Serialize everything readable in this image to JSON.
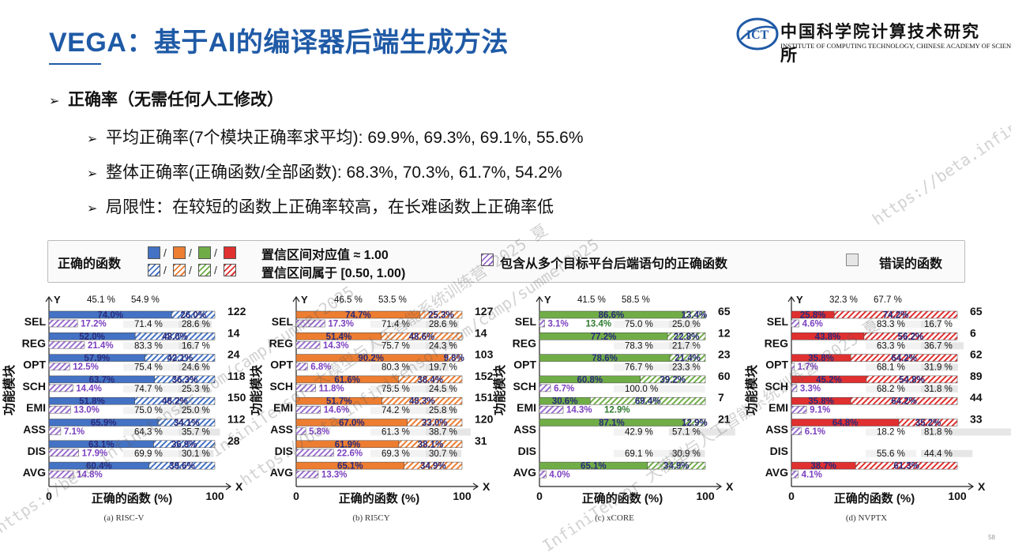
{
  "slide": {
    "title": "VEGA：基于AI的编译器后端生成方法",
    "logo_cn": "中国科学院计算技术研究所",
    "logo_en": "INSTITUTE OF COMPUTING TECHNOLOGY, CHINESE ACADEMY OF SCIENCES",
    "logo_abbr": "ICT",
    "bullets": {
      "main": "正确率（无需任何人工修改）",
      "sub": [
        "平均正确率(7个模块正确率求平均): 69.9%, 69.3%, 69.1%, 55.6%",
        "整体正确率(正确函数/全部函数): 68.3%, 70.3%, 61.7%, 54.2%",
        "局限性：在较短的函数上正确率较高，在长难函数上正确率低"
      ]
    },
    "page_number": "58",
    "watermark": [
      "InfiniTensor 大模型与人工智能系统训练营 2025 夏",
      "https://beta.infinitensor.com/camp/summer2025"
    ]
  },
  "legend": {
    "correct_label": "正确的函数",
    "ci_full": "置信区间对应值 ≈ 1.00",
    "ci_part": "置信区间属于 [0.50, 1.00)",
    "multi": "包含从多个目标平台后端语句的正确函数",
    "wrong": "错误的函数",
    "separator": "/"
  },
  "colors": {
    "RISC-V": "#4472c4",
    "RI5CY": "#ed7d31",
    "xCORE": "#70ad47",
    "NVPTX": "#e03030",
    "multi": "#9b6fcf",
    "wrong": "#e6e6e6"
  },
  "chart_data": [
    {
      "type": "bar",
      "orientation": "horizontal",
      "stacked": true,
      "caption": "(a)  RISC-V",
      "target": "RISC-V",
      "xlabel": "正确的函数 (%)",
      "ylabel": "功能模块",
      "xlim": [
        0,
        100
      ],
      "axis_y_label": "Y",
      "axis_x_label": "X",
      "x_ticks": [
        "0",
        "100"
      ],
      "categories": [
        "SEL",
        "REG",
        "OPT",
        "SCH",
        "EMI",
        "ASS",
        "DIS",
        "AVG"
      ],
      "counts": [
        "122",
        "14",
        "24",
        "118",
        "150",
        "112",
        "28",
        ""
      ],
      "rows": [
        {
          "summary": [
            "45.1 %",
            "54.9 %"
          ],
          "full": 74.0,
          "part": 26.0,
          "multi": 17.2,
          "correct_pct": 71.4,
          "wrong_pct": 28.6
        },
        {
          "summary": null,
          "full": 52.0,
          "part": 48.0,
          "multi": 21.4,
          "correct_pct": 83.3,
          "wrong_pct": 16.7
        },
        {
          "summary": null,
          "full": 57.9,
          "part": 42.1,
          "multi": 12.5,
          "correct_pct": 75.4,
          "wrong_pct": 24.6
        },
        {
          "summary": null,
          "full": 63.7,
          "part": 36.3,
          "multi": 14.4,
          "correct_pct": 74.7,
          "wrong_pct": 25.3
        },
        {
          "summary": null,
          "full": 51.8,
          "part": 48.2,
          "multi": 13.0,
          "correct_pct": 75.0,
          "wrong_pct": 25.0
        },
        {
          "summary": null,
          "full": 65.9,
          "part": 34.1,
          "multi": 7.1,
          "correct_pct": 64.3,
          "wrong_pct": 35.7
        },
        {
          "summary": null,
          "full": 63.1,
          "part": 36.9,
          "multi": 17.9,
          "correct_pct": 69.9,
          "wrong_pct": 30.1
        },
        {
          "summary": null,
          "full": 60.4,
          "part": 39.6,
          "multi": 14.8,
          "correct_pct": null,
          "wrong_pct": null
        }
      ]
    },
    {
      "type": "bar",
      "orientation": "horizontal",
      "stacked": true,
      "caption": "(b)  RI5CY",
      "target": "RI5CY",
      "xlabel": "正确的函数 (%)",
      "ylabel": "功能模块",
      "xlim": [
        0,
        100
      ],
      "axis_y_label": "Y",
      "axis_x_label": "X",
      "x_ticks": [
        "0",
        "100"
      ],
      "categories": [
        "SEL",
        "REG",
        "OPT",
        "SCH",
        "EMI",
        "ASS",
        "DIS",
        "AVG"
      ],
      "counts": [
        "127",
        "14",
        "103",
        "152",
        "151",
        "120",
        "31",
        ""
      ],
      "rows": [
        {
          "summary": [
            "46.5 %",
            "53.5 %"
          ],
          "full": 74.7,
          "part": 25.3,
          "multi": 17.3,
          "correct_pct": 71.4,
          "wrong_pct": 28.6
        },
        {
          "summary": null,
          "full": 51.4,
          "part": 48.6,
          "multi": 14.3,
          "correct_pct": 75.7,
          "wrong_pct": 24.3
        },
        {
          "summary": null,
          "full": 90.2,
          "part": 9.8,
          "multi": 6.8,
          "correct_pct": 80.3,
          "wrong_pct": 19.7
        },
        {
          "summary": null,
          "full": 61.6,
          "part": 38.4,
          "multi": 11.8,
          "correct_pct": 75.5,
          "wrong_pct": 24.5
        },
        {
          "summary": null,
          "full": 51.7,
          "part": 48.3,
          "multi": 14.6,
          "correct_pct": 74.2,
          "wrong_pct": 25.8
        },
        {
          "summary": null,
          "full": 67.0,
          "part": 33.0,
          "multi": 5.8,
          "correct_pct": 61.3,
          "wrong_pct": 38.7
        },
        {
          "summary": null,
          "full": 61.9,
          "part": 38.1,
          "multi": 22.6,
          "correct_pct": 69.3,
          "wrong_pct": 30.7
        },
        {
          "summary": null,
          "full": 65.1,
          "part": 34.9,
          "multi": 13.3,
          "correct_pct": null,
          "wrong_pct": null
        }
      ]
    },
    {
      "type": "bar",
      "orientation": "horizontal",
      "stacked": true,
      "caption": "(c)  xCORE",
      "target": "xCORE",
      "xlabel": "正确的函数 (%)",
      "ylabel": "功能模块",
      "xlim": [
        0,
        100
      ],
      "axis_y_label": "Y",
      "axis_x_label": "X",
      "x_ticks": [
        "0",
        "100"
      ],
      "categories": [
        "SEL",
        "REG",
        "OPT",
        "SCH",
        "EMI",
        "ASS",
        "DIS",
        "AVG"
      ],
      "counts": [
        "65",
        "12",
        "23",
        "60",
        "7",
        "21",
        "",
        ""
      ],
      "rows": [
        {
          "summary": [
            "41.5 %",
            "58.5 %"
          ],
          "full": 86.6,
          "part": 13.4,
          "multi": 3.1,
          "multi2": 13.4,
          "correct_pct": 75.0,
          "wrong_pct": 25.0
        },
        {
          "summary": null,
          "full": 77.2,
          "part": 22.8,
          "multi": null,
          "correct_pct": 78.3,
          "wrong_pct": 21.7
        },
        {
          "summary": null,
          "full": 78.6,
          "part": 21.4,
          "multi": null,
          "correct_pct": 76.7,
          "wrong_pct": 23.3
        },
        {
          "summary": null,
          "full": 60.8,
          "part": 39.2,
          "multi": 6.7,
          "correct_pct": 100.0,
          "wrong_pct": null
        },
        {
          "summary": null,
          "full": 30.6,
          "part": 69.4,
          "multi": 14.3,
          "multi2": 12.9,
          "correct_pct": null,
          "wrong_pct": null
        },
        {
          "summary": null,
          "full": 87.1,
          "part": 12.9,
          "multi": null,
          "correct_pct": 42.9,
          "wrong_pct": 57.1
        },
        {
          "summary": null,
          "full": null,
          "part": null,
          "multi": null,
          "correct_pct": 69.1,
          "wrong_pct": 30.9
        },
        {
          "summary": null,
          "full": 65.1,
          "part": 34.9,
          "multi": 4.0,
          "correct_pct": null,
          "wrong_pct": null
        }
      ]
    },
    {
      "type": "bar",
      "orientation": "horizontal",
      "stacked": true,
      "caption": "(d)  NVPTX",
      "target": "NVPTX",
      "xlabel": "正确的函数 (%)",
      "ylabel": "功能模块",
      "xlim": [
        0,
        100
      ],
      "axis_y_label": "Y",
      "axis_x_label": "X",
      "x_ticks": [
        "0",
        "100"
      ],
      "categories": [
        "SEL",
        "REG",
        "OPT",
        "SCH",
        "EMI",
        "ASS",
        "DIS",
        "AVG"
      ],
      "counts": [
        "65",
        "6",
        "62",
        "89",
        "44",
        "33",
        "",
        ""
      ],
      "rows": [
        {
          "summary": [
            "32.3 %",
            "67.7 %"
          ],
          "full": 25.8,
          "part": 74.2,
          "multi": 4.6,
          "correct_pct": 83.3,
          "wrong_pct": 16.7
        },
        {
          "summary": null,
          "full": 43.8,
          "part": 56.2,
          "multi": null,
          "correct_pct": 63.3,
          "wrong_pct": 36.7
        },
        {
          "summary": null,
          "full": 35.8,
          "part": 64.2,
          "multi": 1.7,
          "correct_pct": 68.1,
          "wrong_pct": 31.9
        },
        {
          "summary": null,
          "full": 45.2,
          "part": 54.8,
          "multi": 3.3,
          "correct_pct": 68.2,
          "wrong_pct": 31.8
        },
        {
          "summary": null,
          "full": 35.8,
          "part": 64.2,
          "multi": 9.1,
          "correct_pct": null,
          "wrong_pct": null
        },
        {
          "summary": null,
          "full": 64.8,
          "part": 35.2,
          "multi": 6.1,
          "correct_pct": 18.2,
          "wrong_pct": 81.8
        },
        {
          "summary": null,
          "full": null,
          "part": null,
          "multi": null,
          "correct_pct": 55.6,
          "wrong_pct": 44.4
        },
        {
          "summary": null,
          "full": 38.7,
          "part": 61.3,
          "multi": 4.1,
          "correct_pct": null,
          "wrong_pct": null
        }
      ]
    }
  ]
}
